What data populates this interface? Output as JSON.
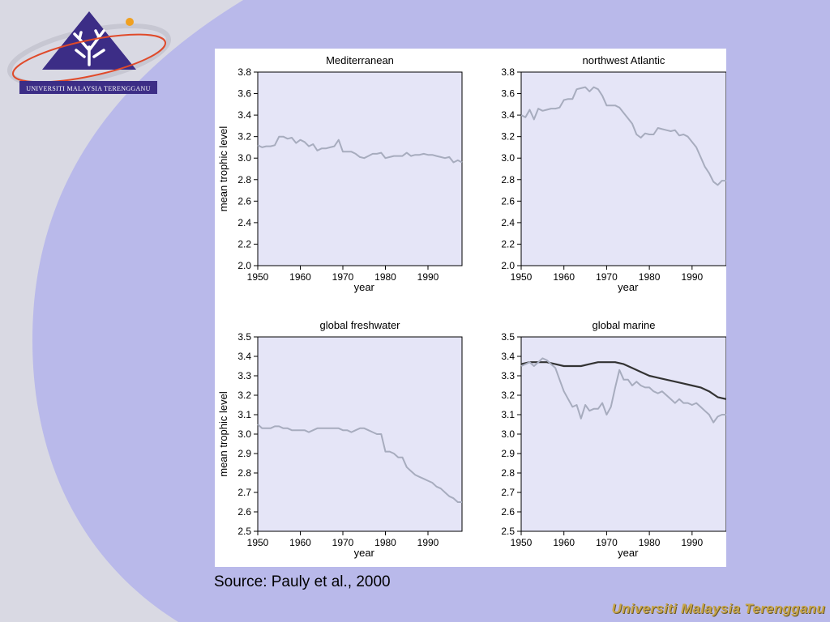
{
  "slide": {
    "logo_text": "UNIVERSITI MALAYSIA TERENGGANU",
    "source": "Source: Pauly et al., 2000",
    "footer_brand": "Universiti Malaysia Terengganu",
    "colors": {
      "background": "#b9b9ea",
      "side_swoosh": "#d9d9e3",
      "plot_bg": "#e5e5f7",
      "line_gray": "#a7acbe",
      "line_dark": "#333333",
      "brand_gold": "#c8a64a"
    }
  },
  "chart_data": [
    {
      "type": "line",
      "title": "Mediterranean",
      "xlabel": "year",
      "ylabel": "mean trophic level",
      "xlim": [
        1950,
        1998
      ],
      "ylim": [
        2.0,
        3.8
      ],
      "xticks": [
        "1950",
        "1960",
        "1970",
        "1980",
        "1990"
      ],
      "yticks": [
        "2.0",
        "2.2",
        "2.4",
        "2.6",
        "2.8",
        "3.0",
        "3.2",
        "3.4",
        "3.6",
        "3.8"
      ],
      "series": [
        {
          "style": "gray",
          "x": [
            1950,
            1951,
            1952,
            1953,
            1954,
            1955,
            1956,
            1957,
            1958,
            1959,
            1960,
            1961,
            1962,
            1963,
            1964,
            1965,
            1966,
            1967,
            1968,
            1969,
            1970,
            1971,
            1972,
            1973,
            1974,
            1975,
            1976,
            1977,
            1978,
            1979,
            1980,
            1981,
            1982,
            1983,
            1984,
            1985,
            1986,
            1987,
            1988,
            1989,
            1990,
            1991,
            1992,
            1993,
            1994,
            1995,
            1996,
            1997,
            1998
          ],
          "y": [
            3.12,
            3.1,
            3.11,
            3.11,
            3.12,
            3.2,
            3.2,
            3.18,
            3.19,
            3.14,
            3.17,
            3.15,
            3.11,
            3.13,
            3.07,
            3.09,
            3.09,
            3.1,
            3.11,
            3.17,
            3.06,
            3.06,
            3.06,
            3.04,
            3.01,
            3.0,
            3.02,
            3.04,
            3.04,
            3.05,
            3.0,
            3.01,
            3.02,
            3.02,
            3.02,
            3.05,
            3.02,
            3.03,
            3.03,
            3.04,
            3.03,
            3.03,
            3.02,
            3.01,
            3.0,
            3.01,
            2.96,
            2.98,
            2.96
          ]
        }
      ]
    },
    {
      "type": "line",
      "title": "northwest Atlantic",
      "xlabel": "year",
      "ylabel": "",
      "xlim": [
        1950,
        1998
      ],
      "ylim": [
        2.0,
        3.8
      ],
      "xticks": [
        "1950",
        "1960",
        "1970",
        "1980",
        "1990"
      ],
      "yticks": [
        "2.0",
        "2.2",
        "2.4",
        "2.6",
        "2.8",
        "3.0",
        "3.2",
        "3.4",
        "3.6",
        "3.8"
      ],
      "series": [
        {
          "style": "gray",
          "x": [
            1950,
            1951,
            1952,
            1953,
            1954,
            1955,
            1956,
            1957,
            1958,
            1959,
            1960,
            1961,
            1962,
            1963,
            1964,
            1965,
            1966,
            1967,
            1968,
            1969,
            1970,
            1971,
            1972,
            1973,
            1974,
            1975,
            1976,
            1977,
            1978,
            1979,
            1980,
            1981,
            1982,
            1983,
            1984,
            1985,
            1986,
            1987,
            1988,
            1989,
            1990,
            1991,
            1992,
            1993,
            1994,
            1995,
            1996,
            1997,
            1998
          ],
          "y": [
            3.4,
            3.38,
            3.45,
            3.36,
            3.46,
            3.44,
            3.45,
            3.46,
            3.46,
            3.47,
            3.54,
            3.55,
            3.55,
            3.64,
            3.65,
            3.66,
            3.62,
            3.66,
            3.64,
            3.58,
            3.49,
            3.49,
            3.49,
            3.47,
            3.42,
            3.37,
            3.32,
            3.22,
            3.19,
            3.23,
            3.22,
            3.22,
            3.28,
            3.27,
            3.26,
            3.25,
            3.26,
            3.21,
            3.22,
            3.2,
            3.15,
            3.1,
            3.01,
            2.92,
            2.86,
            2.78,
            2.75,
            2.79,
            2.79
          ]
        }
      ]
    },
    {
      "type": "line",
      "title": "global freshwater",
      "xlabel": "year",
      "ylabel": "mean trophic level",
      "xlim": [
        1950,
        1998
      ],
      "ylim": [
        2.5,
        3.5
      ],
      "xticks": [
        "1950",
        "1960",
        "1970",
        "1980",
        "1990"
      ],
      "yticks": [
        "2.5",
        "2.6",
        "2.7",
        "2.8",
        "2.9",
        "3.0",
        "3.1",
        "3.2",
        "3.3",
        "3.4",
        "3.5"
      ],
      "series": [
        {
          "style": "gray",
          "x": [
            1950,
            1951,
            1952,
            1953,
            1954,
            1955,
            1956,
            1957,
            1958,
            1959,
            1960,
            1961,
            1962,
            1963,
            1964,
            1965,
            1966,
            1967,
            1968,
            1969,
            1970,
            1971,
            1972,
            1973,
            1974,
            1975,
            1976,
            1977,
            1978,
            1979,
            1980,
            1981,
            1982,
            1983,
            1984,
            1985,
            1986,
            1987,
            1988,
            1989,
            1990,
            1991,
            1992,
            1993,
            1994,
            1995,
            1996,
            1997,
            1998
          ],
          "y": [
            3.05,
            3.03,
            3.03,
            3.03,
            3.04,
            3.04,
            3.03,
            3.03,
            3.02,
            3.02,
            3.02,
            3.02,
            3.01,
            3.02,
            3.03,
            3.03,
            3.03,
            3.03,
            3.03,
            3.03,
            3.02,
            3.02,
            3.01,
            3.02,
            3.03,
            3.03,
            3.02,
            3.01,
            3.0,
            3.0,
            2.91,
            2.91,
            2.9,
            2.88,
            2.88,
            2.83,
            2.81,
            2.79,
            2.78,
            2.77,
            2.76,
            2.75,
            2.73,
            2.72,
            2.7,
            2.68,
            2.67,
            2.65,
            2.65
          ]
        }
      ]
    },
    {
      "type": "line",
      "title": "global marine",
      "xlabel": "year",
      "ylabel": "",
      "xlim": [
        1950,
        1998
      ],
      "ylim": [
        2.5,
        3.5
      ],
      "xticks": [
        "1950",
        "1960",
        "1970",
        "1980",
        "1990"
      ],
      "yticks": [
        "2.5",
        "2.6",
        "2.7",
        "2.8",
        "2.9",
        "3.0",
        "3.1",
        "3.2",
        "3.3",
        "3.4",
        "3.5"
      ],
      "series": [
        {
          "style": "dark",
          "x": [
            1950,
            1952,
            1954,
            1956,
            1958,
            1960,
            1962,
            1964,
            1966,
            1968,
            1970,
            1972,
            1974,
            1976,
            1978,
            1980,
            1982,
            1984,
            1986,
            1988,
            1990,
            1992,
            1994,
            1996,
            1998
          ],
          "y": [
            3.36,
            3.37,
            3.37,
            3.37,
            3.36,
            3.35,
            3.35,
            3.35,
            3.36,
            3.37,
            3.37,
            3.37,
            3.36,
            3.34,
            3.32,
            3.3,
            3.29,
            3.28,
            3.27,
            3.26,
            3.25,
            3.24,
            3.22,
            3.19,
            3.18
          ]
        },
        {
          "style": "gray",
          "x": [
            1950,
            1951,
            1952,
            1953,
            1954,
            1955,
            1956,
            1957,
            1958,
            1959,
            1960,
            1961,
            1962,
            1963,
            1964,
            1965,
            1966,
            1967,
            1968,
            1969,
            1970,
            1971,
            1972,
            1973,
            1974,
            1975,
            1976,
            1977,
            1978,
            1979,
            1980,
            1981,
            1982,
            1983,
            1984,
            1985,
            1986,
            1987,
            1988,
            1989,
            1990,
            1991,
            1992,
            1993,
            1994,
            1995,
            1996,
            1997,
            1998
          ],
          "y": [
            3.35,
            3.36,
            3.37,
            3.35,
            3.37,
            3.39,
            3.38,
            3.36,
            3.34,
            3.28,
            3.22,
            3.18,
            3.14,
            3.15,
            3.08,
            3.15,
            3.12,
            3.13,
            3.13,
            3.16,
            3.1,
            3.14,
            3.24,
            3.33,
            3.28,
            3.28,
            3.25,
            3.27,
            3.25,
            3.24,
            3.24,
            3.22,
            3.21,
            3.22,
            3.2,
            3.18,
            3.16,
            3.18,
            3.16,
            3.16,
            3.15,
            3.16,
            3.14,
            3.12,
            3.1,
            3.06,
            3.09,
            3.1,
            3.1
          ]
        }
      ]
    }
  ]
}
